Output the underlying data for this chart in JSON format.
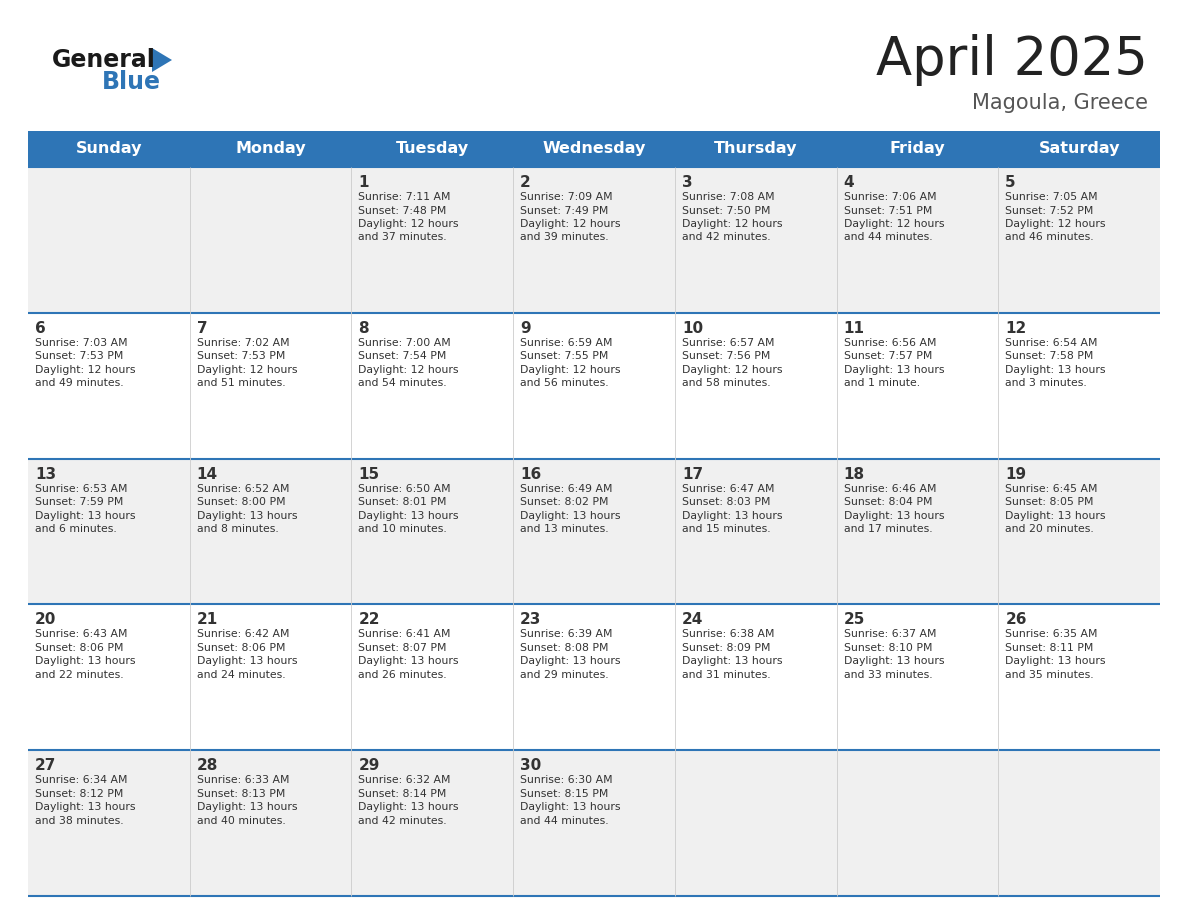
{
  "title": "April 2025",
  "subtitle": "Magoula, Greece",
  "header_bg": "#2e75b6",
  "header_text_color": "#ffffff",
  "days_of_week": [
    "Sunday",
    "Monday",
    "Tuesday",
    "Wednesday",
    "Thursday",
    "Friday",
    "Saturday"
  ],
  "row_bg_light": "#f0f0f0",
  "row_bg_white": "#ffffff",
  "cell_text_color": "#333333",
  "logo_general_color": "#1a1a1a",
  "logo_blue_color": "#2e75b6",
  "border_color": "#2e75b6",
  "calendar": [
    [
      {
        "day": "",
        "sunrise": "",
        "sunset": "",
        "daylight": ""
      },
      {
        "day": "",
        "sunrise": "",
        "sunset": "",
        "daylight": ""
      },
      {
        "day": "1",
        "sunrise": "7:11 AM",
        "sunset": "7:48 PM",
        "daylight": "12 hours and 37 minutes."
      },
      {
        "day": "2",
        "sunrise": "7:09 AM",
        "sunset": "7:49 PM",
        "daylight": "12 hours and 39 minutes."
      },
      {
        "day": "3",
        "sunrise": "7:08 AM",
        "sunset": "7:50 PM",
        "daylight": "12 hours and 42 minutes."
      },
      {
        "day": "4",
        "sunrise": "7:06 AM",
        "sunset": "7:51 PM",
        "daylight": "12 hours and 44 minutes."
      },
      {
        "day": "5",
        "sunrise": "7:05 AM",
        "sunset": "7:52 PM",
        "daylight": "12 hours and 46 minutes."
      }
    ],
    [
      {
        "day": "6",
        "sunrise": "7:03 AM",
        "sunset": "7:53 PM",
        "daylight": "12 hours and 49 minutes."
      },
      {
        "day": "7",
        "sunrise": "7:02 AM",
        "sunset": "7:53 PM",
        "daylight": "12 hours and 51 minutes."
      },
      {
        "day": "8",
        "sunrise": "7:00 AM",
        "sunset": "7:54 PM",
        "daylight": "12 hours and 54 minutes."
      },
      {
        "day": "9",
        "sunrise": "6:59 AM",
        "sunset": "7:55 PM",
        "daylight": "12 hours and 56 minutes."
      },
      {
        "day": "10",
        "sunrise": "6:57 AM",
        "sunset": "7:56 PM",
        "daylight": "12 hours and 58 minutes."
      },
      {
        "day": "11",
        "sunrise": "6:56 AM",
        "sunset": "7:57 PM",
        "daylight": "13 hours and 1 minute."
      },
      {
        "day": "12",
        "sunrise": "6:54 AM",
        "sunset": "7:58 PM",
        "daylight": "13 hours and 3 minutes."
      }
    ],
    [
      {
        "day": "13",
        "sunrise": "6:53 AM",
        "sunset": "7:59 PM",
        "daylight": "13 hours and 6 minutes."
      },
      {
        "day": "14",
        "sunrise": "6:52 AM",
        "sunset": "8:00 PM",
        "daylight": "13 hours and 8 minutes."
      },
      {
        "day": "15",
        "sunrise": "6:50 AM",
        "sunset": "8:01 PM",
        "daylight": "13 hours and 10 minutes."
      },
      {
        "day": "16",
        "sunrise": "6:49 AM",
        "sunset": "8:02 PM",
        "daylight": "13 hours and 13 minutes."
      },
      {
        "day": "17",
        "sunrise": "6:47 AM",
        "sunset": "8:03 PM",
        "daylight": "13 hours and 15 minutes."
      },
      {
        "day": "18",
        "sunrise": "6:46 AM",
        "sunset": "8:04 PM",
        "daylight": "13 hours and 17 minutes."
      },
      {
        "day": "19",
        "sunrise": "6:45 AM",
        "sunset": "8:05 PM",
        "daylight": "13 hours and 20 minutes."
      }
    ],
    [
      {
        "day": "20",
        "sunrise": "6:43 AM",
        "sunset": "8:06 PM",
        "daylight": "13 hours and 22 minutes."
      },
      {
        "day": "21",
        "sunrise": "6:42 AM",
        "sunset": "8:06 PM",
        "daylight": "13 hours and 24 minutes."
      },
      {
        "day": "22",
        "sunrise": "6:41 AM",
        "sunset": "8:07 PM",
        "daylight": "13 hours and 26 minutes."
      },
      {
        "day": "23",
        "sunrise": "6:39 AM",
        "sunset": "8:08 PM",
        "daylight": "13 hours and 29 minutes."
      },
      {
        "day": "24",
        "sunrise": "6:38 AM",
        "sunset": "8:09 PM",
        "daylight": "13 hours and 31 minutes."
      },
      {
        "day": "25",
        "sunrise": "6:37 AM",
        "sunset": "8:10 PM",
        "daylight": "13 hours and 33 minutes."
      },
      {
        "day": "26",
        "sunrise": "6:35 AM",
        "sunset": "8:11 PM",
        "daylight": "13 hours and 35 minutes."
      }
    ],
    [
      {
        "day": "27",
        "sunrise": "6:34 AM",
        "sunset": "8:12 PM",
        "daylight": "13 hours and 38 minutes."
      },
      {
        "day": "28",
        "sunrise": "6:33 AM",
        "sunset": "8:13 PM",
        "daylight": "13 hours and 40 minutes."
      },
      {
        "day": "29",
        "sunrise": "6:32 AM",
        "sunset": "8:14 PM",
        "daylight": "13 hours and 42 minutes."
      },
      {
        "day": "30",
        "sunrise": "6:30 AM",
        "sunset": "8:15 PM",
        "daylight": "13 hours and 44 minutes."
      },
      {
        "day": "",
        "sunrise": "",
        "sunset": "",
        "daylight": ""
      },
      {
        "day": "",
        "sunrise": "",
        "sunset": "",
        "daylight": ""
      },
      {
        "day": "",
        "sunrise": "",
        "sunset": "",
        "daylight": ""
      }
    ]
  ]
}
